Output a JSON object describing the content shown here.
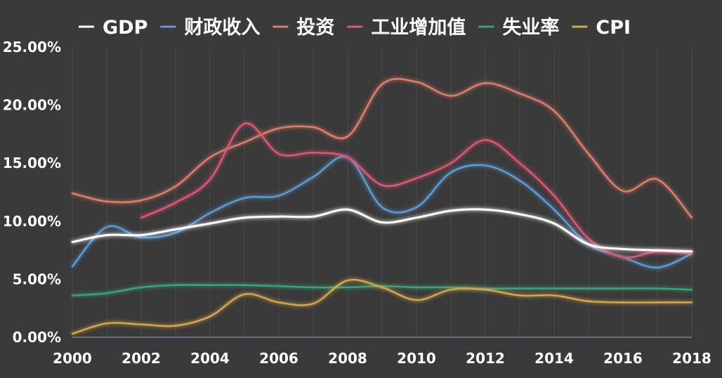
{
  "chart_data": {
    "type": "line",
    "title": "",
    "xlabel": "",
    "ylabel": "",
    "xlim": [
      2000,
      2018
    ],
    "ylim": [
      0,
      25
    ],
    "x_ticks": [
      "2000",
      "2002",
      "2004",
      "2006",
      "2008",
      "2010",
      "2012",
      "2014",
      "2016",
      "2018"
    ],
    "y_ticks": [
      "0.00%",
      "5.00%",
      "10.00%",
      "15.00%",
      "20.00%",
      "25.00%"
    ],
    "legend_position": "top",
    "grid": "vertical",
    "highlight_year": 2013,
    "series": [
      {
        "name": "GDP",
        "color": "#ffffff",
        "points": [
          [
            2000,
            8.2
          ],
          [
            2001,
            8.8
          ],
          [
            2002,
            8.8
          ],
          [
            2003,
            9.3
          ],
          [
            2004,
            9.8
          ],
          [
            2005,
            10.3
          ],
          [
            2006,
            10.4
          ],
          [
            2007,
            10.4
          ],
          [
            2008,
            11.0
          ],
          [
            2009,
            9.9
          ],
          [
            2010,
            10.3
          ],
          [
            2011,
            10.9
          ],
          [
            2012,
            11.0
          ],
          [
            2013,
            10.6
          ],
          [
            2014,
            9.8
          ],
          [
            2015,
            8.0
          ],
          [
            2016,
            7.6
          ],
          [
            2017,
            7.5
          ],
          [
            2018,
            7.4
          ]
        ]
      },
      {
        "name": "财政收入",
        "color": "#5b9bd5",
        "points": [
          [
            2000,
            6.1
          ],
          [
            2001,
            9.5
          ],
          [
            2002,
            8.6
          ],
          [
            2003,
            9.0
          ],
          [
            2004,
            10.7
          ],
          [
            2005,
            12.0
          ],
          [
            2006,
            12.2
          ],
          [
            2007,
            13.8
          ],
          [
            2008,
            15.5
          ],
          [
            2009,
            11.2
          ],
          [
            2010,
            11.2
          ],
          [
            2011,
            14.2
          ],
          [
            2012,
            14.8
          ],
          [
            2013,
            13.5
          ],
          [
            2014,
            11.0
          ],
          [
            2015,
            8.0
          ],
          [
            2016,
            6.9
          ],
          [
            2017,
            6.0
          ],
          [
            2018,
            7.2
          ]
        ]
      },
      {
        "name": "投资",
        "color": "#e07b6b",
        "points": [
          [
            2000,
            12.4
          ],
          [
            2001,
            11.7
          ],
          [
            2002,
            11.8
          ],
          [
            2003,
            13.0
          ],
          [
            2004,
            15.5
          ],
          [
            2005,
            16.8
          ],
          [
            2006,
            18.0
          ],
          [
            2007,
            18.1
          ],
          [
            2008,
            17.3
          ],
          [
            2009,
            21.8
          ],
          [
            2010,
            22.0
          ],
          [
            2011,
            20.8
          ],
          [
            2012,
            21.9
          ],
          [
            2013,
            21.0
          ],
          [
            2014,
            19.5
          ],
          [
            2015,
            15.8
          ],
          [
            2016,
            12.6
          ],
          [
            2017,
            13.6
          ],
          [
            2018,
            10.3
          ]
        ]
      },
      {
        "name": "工业增加值",
        "color": "#e0566f",
        "points": [
          [
            2002,
            10.3
          ],
          [
            2003,
            11.6
          ],
          [
            2004,
            13.6
          ],
          [
            2005,
            18.4
          ],
          [
            2006,
            15.8
          ],
          [
            2007,
            15.9
          ],
          [
            2008,
            15.5
          ],
          [
            2009,
            13.1
          ],
          [
            2010,
            13.7
          ],
          [
            2011,
            15.0
          ],
          [
            2012,
            17.0
          ],
          [
            2013,
            15.0
          ],
          [
            2014,
            12.2
          ],
          [
            2015,
            8.5
          ],
          [
            2016,
            6.9
          ],
          [
            2017,
            7.4
          ],
          [
            2018,
            7.2
          ]
        ]
      },
      {
        "name": "失业率",
        "color": "#3aa37a",
        "points": [
          [
            2000,
            3.6
          ],
          [
            2001,
            3.8
          ],
          [
            2002,
            4.3
          ],
          [
            2003,
            4.5
          ],
          [
            2004,
            4.5
          ],
          [
            2005,
            4.5
          ],
          [
            2006,
            4.4
          ],
          [
            2007,
            4.3
          ],
          [
            2008,
            4.3
          ],
          [
            2009,
            4.4
          ],
          [
            2010,
            4.3
          ],
          [
            2011,
            4.3
          ],
          [
            2012,
            4.2
          ],
          [
            2013,
            4.2
          ],
          [
            2014,
            4.2
          ],
          [
            2015,
            4.2
          ],
          [
            2016,
            4.2
          ],
          [
            2017,
            4.2
          ],
          [
            2018,
            4.1
          ]
        ]
      },
      {
        "name": "CPI",
        "color": "#d4a64a",
        "points": [
          [
            2000,
            0.3
          ],
          [
            2001,
            1.2
          ],
          [
            2002,
            1.1
          ],
          [
            2003,
            1.0
          ],
          [
            2004,
            1.8
          ],
          [
            2005,
            3.7
          ],
          [
            2006,
            3.0
          ],
          [
            2007,
            2.9
          ],
          [
            2008,
            4.9
          ],
          [
            2009,
            4.3
          ],
          [
            2010,
            3.2
          ],
          [
            2011,
            4.1
          ],
          [
            2012,
            4.1
          ],
          [
            2013,
            3.6
          ],
          [
            2014,
            3.6
          ],
          [
            2015,
            3.1
          ],
          [
            2016,
            3.0
          ],
          [
            2017,
            3.0
          ],
          [
            2018,
            3.0
          ]
        ]
      }
    ]
  }
}
